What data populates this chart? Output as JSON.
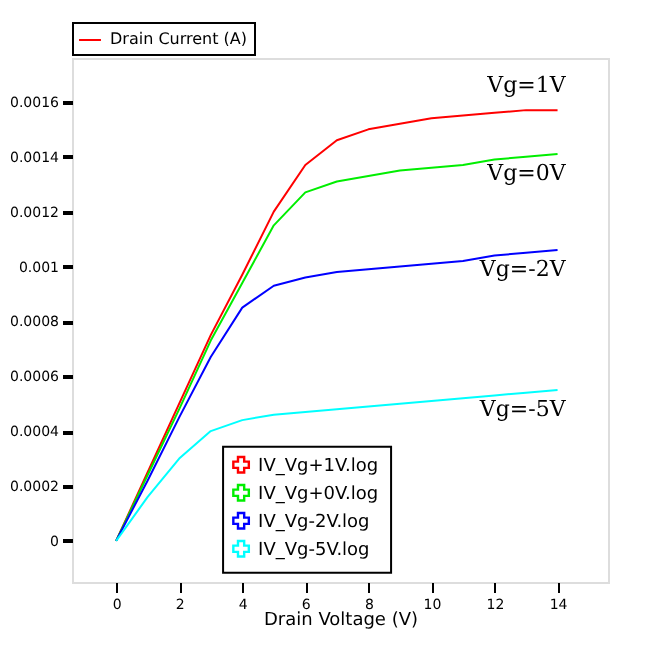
{
  "chart_data": {
    "type": "line",
    "ylabel": "Drain Current (A)",
    "xlabel": "Drain Voltage (V)",
    "x": [
      0,
      1,
      2,
      3,
      4,
      5,
      6,
      7,
      8,
      9,
      10,
      11,
      12,
      13,
      14
    ],
    "series": [
      {
        "name": "IV_Vg+1V.log",
        "color": "#ff0000",
        "values": [
          0,
          0.00025,
          0.0005,
          0.00075,
          0.00097,
          0.0012,
          0.00137,
          0.00146,
          0.0015,
          0.00152,
          0.00154,
          0.00155,
          0.00156,
          0.00157,
          0.00157
        ]
      },
      {
        "name": "IV_Vg+0V.log",
        "color": "#00ee00",
        "values": [
          0,
          0.00024,
          0.00048,
          0.00073,
          0.00094,
          0.00115,
          0.00127,
          0.00131,
          0.00133,
          0.00135,
          0.00136,
          0.00137,
          0.00139,
          0.0014,
          0.00141
        ]
      },
      {
        "name": "IV_Vg-2V.log",
        "color": "#0000ff",
        "values": [
          0,
          0.00022,
          0.00045,
          0.00067,
          0.00085,
          0.00093,
          0.00096,
          0.00098,
          0.00099,
          0.001,
          0.00101,
          0.00102,
          0.00104,
          0.00105,
          0.00106
        ]
      },
      {
        "name": "IV_Vg-5V.log",
        "color": "#00ffff",
        "values": [
          0,
          0.00016,
          0.0003,
          0.0004,
          0.00044,
          0.00046,
          0.00047,
          0.00048,
          0.00049,
          0.0005,
          0.00051,
          0.00052,
          0.00053,
          0.00054,
          0.00055
        ]
      }
    ],
    "xlim": [
      -1.4,
      15.6
    ],
    "ylim": [
      -0.00015,
      0.00176
    ],
    "xticks": [
      0,
      2,
      4,
      6,
      8,
      10,
      12,
      14
    ],
    "yticks": [
      {
        "value": 0,
        "label": "0"
      },
      0.0002,
      0.0004,
      0.0006,
      0.0008,
      {
        "value": 0.001,
        "label": "0.001"
      },
      0.0012,
      0.0014,
      0.0016
    ],
    "legend": "bottom",
    "annotations": [
      "Vg=1V",
      "Vg=0V",
      "Vg=-2V",
      "Vg=-5V"
    ]
  }
}
